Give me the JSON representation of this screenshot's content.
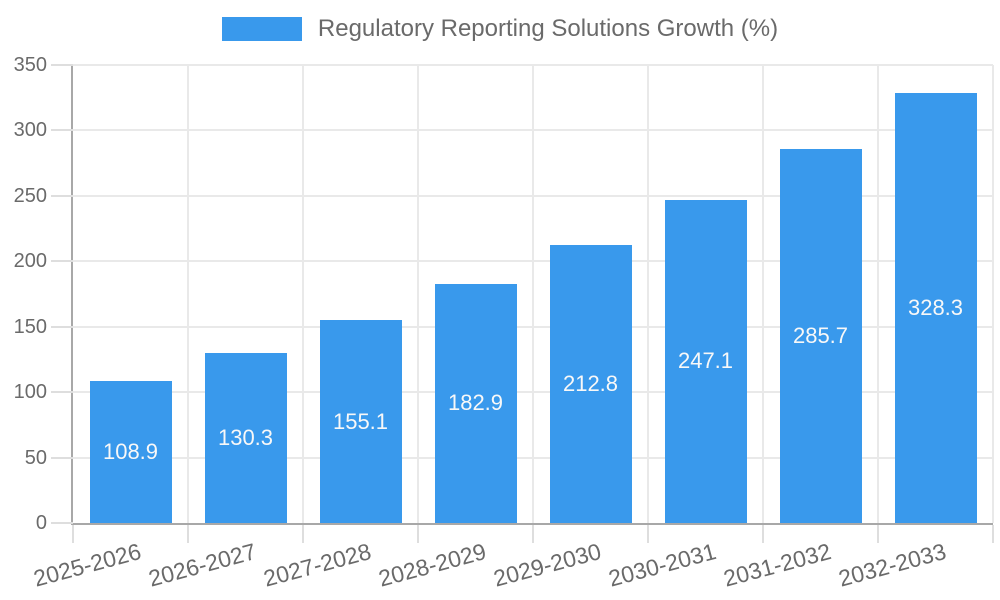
{
  "chart_data": {
    "type": "bar",
    "title": "",
    "legend": "Regulatory Reporting Solutions Growth (%)",
    "legend_position": "top",
    "categories": [
      "2025-2026",
      "2026-2027",
      "2027-2028",
      "2028-2029",
      "2029-2030",
      "2030-2031",
      "2031-2032",
      "2032-2033"
    ],
    "values": [
      108.9,
      130.3,
      155.1,
      182.9,
      212.8,
      247.1,
      285.7,
      328.3
    ],
    "value_labels": [
      "108.9",
      "130.3",
      "155.1",
      "182.9",
      "212.8",
      "247.1",
      "285.7",
      "328.3"
    ],
    "xlabel": "",
    "ylabel": "",
    "ylim": [
      0,
      350
    ],
    "yticks": [
      0,
      50,
      100,
      150,
      200,
      250,
      300,
      350
    ],
    "grid": true,
    "x_tick_rotation_deg": -15,
    "colors": {
      "bar": "#3999ec",
      "grid": "#e9e9e9",
      "axis": "#a8a8a8",
      "tick_mark": "#dedede",
      "text": "#6a6a6a",
      "bar_label": "#f8f8f8",
      "background": "#ffffff"
    }
  }
}
